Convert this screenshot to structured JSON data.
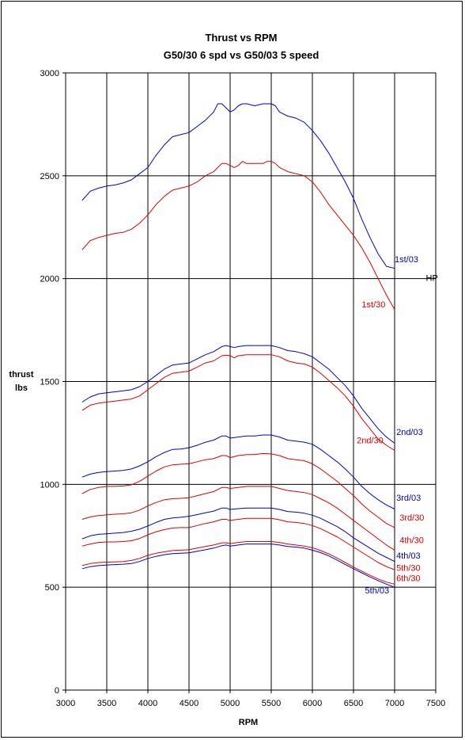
{
  "chart_data": {
    "type": "line",
    "title": "Thrust vs RPM",
    "subtitle": "G50/30 6 spd vs G50/03 5 speed",
    "xlabel": "RPM",
    "ylabel_line1": "thrust",
    "ylabel_line2": "lbs",
    "xlim": [
      3000,
      7500
    ],
    "ylim": [
      0,
      3000
    ],
    "xticks": [
      3000,
      3500,
      4000,
      4500,
      5000,
      5500,
      6000,
      6500,
      7000,
      7500
    ],
    "yticks": [
      0,
      500,
      1000,
      1500,
      2000,
      2500,
      3000
    ],
    "grid": true,
    "annotation": {
      "text": "HP",
      "x": 7380,
      "y": 1990
    },
    "colors": {
      "blue": "#0000cc",
      "red": "#dd0000"
    },
    "series": [
      {
        "name": "1st/03",
        "color": "blue",
        "label_pos": [
          7000,
          2080
        ],
        "x": [
          3200,
          3300,
          3400,
          3500,
          3600,
          3700,
          3800,
          3900,
          4000,
          4100,
          4200,
          4300,
          4400,
          4500,
          4600,
          4700,
          4800,
          4850,
          4900,
          4950,
          5000,
          5050,
          5100,
          5150,
          5200,
          5300,
          5400,
          5450,
          5500,
          5550,
          5600,
          5700,
          5800,
          5900,
          6000,
          6100,
          6200,
          6300,
          6400,
          6500,
          6600,
          6700,
          6800,
          6900,
          7000
        ],
        "y": [
          2380,
          2425,
          2440,
          2450,
          2455,
          2465,
          2480,
          2510,
          2540,
          2600,
          2650,
          2690,
          2700,
          2710,
          2740,
          2770,
          2810,
          2850,
          2850,
          2830,
          2810,
          2820,
          2840,
          2850,
          2850,
          2840,
          2850,
          2850,
          2850,
          2840,
          2810,
          2790,
          2780,
          2760,
          2720,
          2670,
          2610,
          2540,
          2470,
          2390,
          2290,
          2200,
          2120,
          2060,
          2050
        ]
      },
      {
        "name": "1st/30",
        "color": "red",
        "label_pos": [
          6600,
          1860
        ],
        "x": [
          3200,
          3300,
          3400,
          3500,
          3600,
          3700,
          3800,
          3900,
          4000,
          4100,
          4200,
          4300,
          4400,
          4500,
          4600,
          4700,
          4800,
          4900,
          4950,
          5000,
          5050,
          5100,
          5150,
          5200,
          5300,
          5400,
          5450,
          5500,
          5550,
          5600,
          5700,
          5800,
          5900,
          6000,
          6100,
          6200,
          6300,
          6400,
          6500,
          6600,
          6700,
          6800,
          6900,
          7000
        ],
        "y": [
          2140,
          2185,
          2200,
          2210,
          2220,
          2225,
          2240,
          2270,
          2310,
          2360,
          2400,
          2430,
          2440,
          2450,
          2470,
          2500,
          2520,
          2560,
          2560,
          2550,
          2540,
          2550,
          2570,
          2560,
          2560,
          2560,
          2570,
          2570,
          2560,
          2540,
          2520,
          2510,
          2500,
          2470,
          2420,
          2360,
          2310,
          2260,
          2210,
          2150,
          2080,
          2000,
          1920,
          1850
        ]
      },
      {
        "name": "2nd/03",
        "color": "blue",
        "label_pos": [
          7020,
          1240
        ],
        "x": [
          3200,
          3300,
          3400,
          3500,
          3600,
          3700,
          3800,
          3900,
          4000,
          4100,
          4200,
          4300,
          4400,
          4500,
          4600,
          4700,
          4800,
          4900,
          4950,
          5000,
          5050,
          5100,
          5200,
          5300,
          5400,
          5500,
          5600,
          5700,
          5800,
          5900,
          6000,
          6100,
          6200,
          6300,
          6400,
          6500,
          6600,
          6700,
          6800,
          6900,
          7000
        ],
        "y": [
          1400,
          1425,
          1440,
          1445,
          1450,
          1455,
          1460,
          1475,
          1500,
          1530,
          1560,
          1580,
          1585,
          1590,
          1610,
          1630,
          1645,
          1670,
          1675,
          1670,
          1665,
          1670,
          1675,
          1675,
          1675,
          1675,
          1665,
          1650,
          1645,
          1635,
          1620,
          1590,
          1560,
          1520,
          1480,
          1430,
          1370,
          1320,
          1270,
          1230,
          1200
        ]
      },
      {
        "name": "2nd/30",
        "color": "red",
        "label_pos": [
          6540,
          1200
        ],
        "x": [
          3200,
          3300,
          3400,
          3500,
          3600,
          3700,
          3800,
          3900,
          4000,
          4100,
          4200,
          4300,
          4400,
          4500,
          4600,
          4700,
          4800,
          4900,
          4950,
          5000,
          5050,
          5100,
          5200,
          5300,
          5400,
          5500,
          5600,
          5700,
          5800,
          5900,
          6000,
          6100,
          6200,
          6300,
          6400,
          6500,
          6600,
          6700,
          6800,
          6900,
          7000
        ],
        "y": [
          1360,
          1385,
          1395,
          1400,
          1405,
          1410,
          1415,
          1430,
          1460,
          1490,
          1520,
          1540,
          1545,
          1550,
          1570,
          1590,
          1600,
          1625,
          1628,
          1625,
          1615,
          1625,
          1630,
          1630,
          1630,
          1630,
          1620,
          1600,
          1590,
          1585,
          1570,
          1540,
          1505,
          1470,
          1430,
          1380,
          1320,
          1270,
          1220,
          1190,
          1165
        ]
      },
      {
        "name": "3rd/03",
        "color": "blue",
        "label_pos": [
          7020,
          920
        ],
        "x": [
          3200,
          3300,
          3400,
          3500,
          3600,
          3700,
          3800,
          3900,
          4000,
          4100,
          4200,
          4300,
          4400,
          4500,
          4600,
          4700,
          4800,
          4900,
          4950,
          5000,
          5100,
          5200,
          5300,
          5400,
          5500,
          5600,
          5700,
          5800,
          5900,
          6000,
          6100,
          6200,
          6300,
          6400,
          6500,
          6600,
          6700,
          6800,
          6900,
          7000
        ],
        "y": [
          1035,
          1050,
          1058,
          1062,
          1065,
          1068,
          1075,
          1090,
          1110,
          1135,
          1155,
          1170,
          1172,
          1178,
          1190,
          1205,
          1215,
          1235,
          1235,
          1225,
          1230,
          1235,
          1235,
          1240,
          1240,
          1230,
          1215,
          1210,
          1205,
          1195,
          1170,
          1140,
          1110,
          1075,
          1035,
          990,
          955,
          925,
          900,
          880
        ]
      },
      {
        "name": "3rd/30",
        "color": "red",
        "label_pos": [
          7060,
          825
        ],
        "x": [
          3200,
          3300,
          3400,
          3500,
          3600,
          3700,
          3800,
          3900,
          4000,
          4100,
          4200,
          4300,
          4400,
          4500,
          4600,
          4700,
          4800,
          4900,
          4950,
          5000,
          5100,
          5200,
          5300,
          5400,
          5500,
          5600,
          5700,
          5800,
          5900,
          6000,
          6100,
          6200,
          6300,
          6400,
          6500,
          6600,
          6700,
          6800,
          6900,
          7000
        ],
        "y": [
          955,
          975,
          985,
          990,
          990,
          992,
          998,
          1015,
          1040,
          1065,
          1085,
          1095,
          1098,
          1100,
          1110,
          1120,
          1125,
          1140,
          1140,
          1130,
          1140,
          1145,
          1145,
          1150,
          1148,
          1140,
          1125,
          1120,
          1115,
          1100,
          1075,
          1045,
          1015,
          980,
          945,
          905,
          870,
          840,
          810,
          790
        ]
      },
      {
        "name": "4th/30",
        "color": "red",
        "label_pos": [
          7060,
          715
        ],
        "x": [
          3200,
          3300,
          3400,
          3500,
          3600,
          3700,
          3800,
          3900,
          4000,
          4100,
          4200,
          4300,
          4400,
          4500,
          4600,
          4700,
          4800,
          4900,
          4950,
          5000,
          5100,
          5200,
          5300,
          5400,
          5500,
          5600,
          5700,
          5800,
          5900,
          6000,
          6100,
          6200,
          6300,
          6400,
          6500,
          6600,
          6700,
          6800,
          6900,
          7000
        ],
        "y": [
          830,
          842,
          848,
          852,
          855,
          857,
          862,
          875,
          895,
          912,
          925,
          930,
          932,
          935,
          945,
          955,
          965,
          985,
          985,
          980,
          985,
          990,
          990,
          990,
          990,
          980,
          970,
          965,
          960,
          950,
          930,
          910,
          885,
          855,
          825,
          795,
          765,
          735,
          705,
          680
        ]
      },
      {
        "name": "4th/03",
        "color": "blue",
        "label_pos": [
          7020,
          640
        ],
        "x": [
          3200,
          3300,
          3400,
          3500,
          3600,
          3700,
          3800,
          3900,
          4000,
          4100,
          4200,
          4300,
          4400,
          4500,
          4600,
          4700,
          4800,
          4900,
          4950,
          5000,
          5100,
          5200,
          5300,
          5400,
          5500,
          5600,
          5700,
          5800,
          5900,
          6000,
          6100,
          6200,
          6300,
          6400,
          6500,
          6600,
          6700,
          6800,
          6900,
          7000
        ],
        "y": [
          735,
          750,
          757,
          760,
          763,
          766,
          772,
          782,
          798,
          815,
          830,
          837,
          840,
          845,
          853,
          862,
          870,
          885,
          885,
          878,
          882,
          885,
          885,
          885,
          885,
          878,
          868,
          865,
          860,
          850,
          835,
          815,
          795,
          770,
          740,
          715,
          690,
          665,
          645,
          625
        ]
      },
      {
        "name": "5th/30",
        "color": "red",
        "label_pos": [
          7020,
          580
        ],
        "x": [
          3200,
          3300,
          3400,
          3500,
          3600,
          3700,
          3800,
          3900,
          4000,
          4100,
          4200,
          4300,
          4400,
          4500,
          4600,
          4700,
          4800,
          4900,
          4950,
          5000,
          5100,
          5200,
          5300,
          5400,
          5500,
          5600,
          5700,
          5800,
          5900,
          6000,
          6100,
          6200,
          6300,
          6400,
          6500,
          6600,
          6700,
          6800,
          6900,
          7000
        ],
        "y": [
          700,
          710,
          718,
          720,
          720,
          722,
          726,
          737,
          755,
          770,
          780,
          788,
          790,
          790,
          800,
          810,
          818,
          830,
          830,
          825,
          830,
          835,
          835,
          835,
          835,
          828,
          818,
          815,
          810,
          800,
          785,
          765,
          745,
          720,
          695,
          670,
          645,
          620,
          600,
          585
        ]
      },
      {
        "name": "6th/30",
        "color": "red",
        "label_pos": [
          7020,
          530
        ],
        "x": [
          3200,
          3300,
          3400,
          3500,
          3600,
          3700,
          3800,
          3900,
          4000,
          4100,
          4200,
          4300,
          4400,
          4500,
          4600,
          4700,
          4800,
          4900,
          4950,
          5000,
          5100,
          5200,
          5300,
          5400,
          5500,
          5600,
          5700,
          5800,
          5900,
          6000,
          6100,
          6200,
          6300,
          6400,
          6500,
          6600,
          6700,
          6800,
          6900,
          7000
        ],
        "y": [
          605,
          615,
          620,
          622,
          623,
          625,
          630,
          640,
          655,
          665,
          672,
          678,
          680,
          682,
          690,
          698,
          705,
          716,
          716,
          712,
          718,
          722,
          722,
          722,
          722,
          718,
          710,
          705,
          700,
          692,
          678,
          662,
          642,
          620,
          598,
          578,
          558,
          540,
          525,
          515
        ]
      },
      {
        "name": "5th/03",
        "color": "blue",
        "label_pos": [
          6640,
          470
        ],
        "x": [
          3200,
          3300,
          3400,
          3500,
          3600,
          3700,
          3800,
          3900,
          4000,
          4100,
          4200,
          4300,
          4400,
          4500,
          4600,
          4700,
          4800,
          4900,
          4950,
          5000,
          5100,
          5200,
          5300,
          5400,
          5500,
          5600,
          5700,
          5800,
          5900,
          6000,
          6100,
          6200,
          6300,
          6400,
          6500,
          6600,
          6700,
          6800,
          6900,
          7000
        ],
        "y": [
          590,
          600,
          605,
          608,
          610,
          612,
          615,
          625,
          640,
          650,
          658,
          663,
          665,
          667,
          675,
          682,
          690,
          702,
          705,
          700,
          705,
          710,
          710,
          710,
          710,
          705,
          698,
          695,
          690,
          680,
          668,
          652,
          632,
          610,
          590,
          570,
          550,
          532,
          515,
          500
        ]
      }
    ]
  }
}
